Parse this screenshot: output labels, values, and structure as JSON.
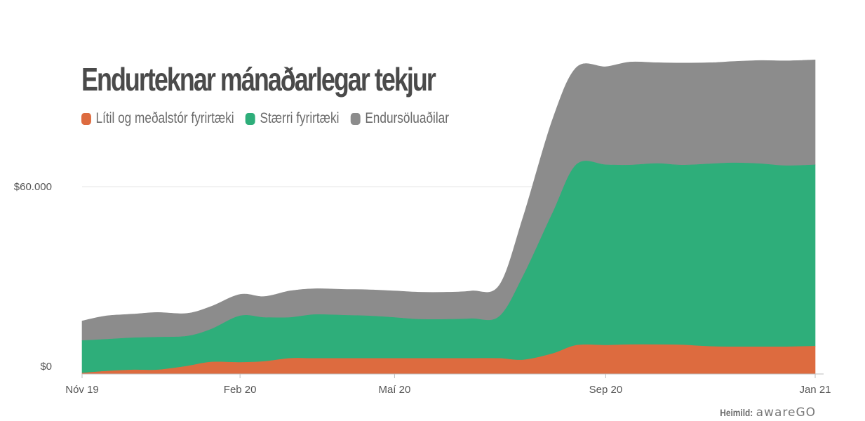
{
  "chart_data": {
    "type": "area",
    "stacked": true,
    "title": "Endurteknar mánaðarlegar tekjur",
    "source_label": "Heimild:",
    "source_logo": "awareGO",
    "x": [
      "2019-11-01",
      "2019-11-15",
      "2019-12-01",
      "2019-12-15",
      "2020-01-01",
      "2020-01-15",
      "2020-02-01",
      "2020-02-15",
      "2020-03-01",
      "2020-03-15",
      "2020-04-01",
      "2020-04-15",
      "2020-05-01",
      "2020-05-15",
      "2020-06-01",
      "2020-06-15",
      "2020-07-01",
      "2020-07-15",
      "2020-08-01",
      "2020-08-15",
      "2020-09-01",
      "2020-09-15",
      "2020-10-01",
      "2020-10-15",
      "2020-11-01",
      "2020-11-15",
      "2020-12-01",
      "2020-12-15",
      "2021-01-01"
    ],
    "x_ticks": [
      {
        "date": "2019-11-01",
        "label": "Nóv 19"
      },
      {
        "date": "2020-02-01",
        "label": "Feb 20"
      },
      {
        "date": "2020-05-01",
        "label": "Maí 20"
      },
      {
        "date": "2020-09-01",
        "label": "Sep 20"
      },
      {
        "date": "2021-01-01",
        "label": "Jan 21"
      }
    ],
    "y_ticks": [
      {
        "value": 0,
        "label": "$0"
      },
      {
        "value": 60000,
        "label": "$60.000"
      }
    ],
    "ylim": [
      0,
      105000
    ],
    "grid": {
      "y": true,
      "x": false
    },
    "legend_position": "top-left",
    "series": [
      {
        "name": "Lítil og meðalstór fyrirtæki",
        "color": "#dd6b3f",
        "values": [
          300,
          900,
          1300,
          1300,
          2500,
          3800,
          3700,
          4000,
          5000,
          5000,
          5000,
          5000,
          5000,
          5000,
          5000,
          5000,
          5000,
          4500,
          6500,
          9200,
          9200,
          9400,
          9400,
          9300,
          8800,
          8700,
          8700,
          8700,
          8900
        ]
      },
      {
        "name": "Stærri fyrirtæki",
        "color": "#2eae7a",
        "values": [
          10400,
          10200,
          10300,
          10500,
          9600,
          10500,
          14900,
          14100,
          13100,
          14000,
          13800,
          13600,
          13100,
          12500,
          12500,
          12700,
          13400,
          27000,
          45000,
          57900,
          57800,
          57500,
          58000,
          57600,
          58500,
          58900,
          58600,
          58000,
          58100
        ]
      },
      {
        "name": "Endursöluaðilar",
        "color": "#8c8c8c",
        "values": [
          6300,
          7500,
          7600,
          7900,
          7300,
          7300,
          6900,
          6700,
          8500,
          8300,
          8300,
          8400,
          8500,
          8700,
          8700,
          8900,
          10000,
          19000,
          30000,
          31100,
          31400,
          33000,
          32300,
          32700,
          32400,
          32500,
          33100,
          33600,
          33600
        ]
      }
    ]
  }
}
